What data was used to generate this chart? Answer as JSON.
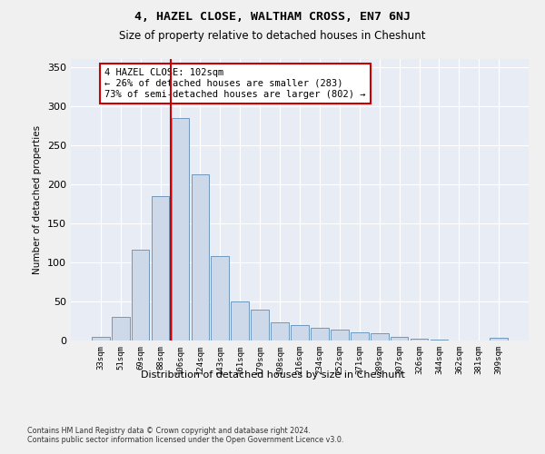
{
  "title": "4, HAZEL CLOSE, WALTHAM CROSS, EN7 6NJ",
  "subtitle": "Size of property relative to detached houses in Cheshunt",
  "xlabel": "Distribution of detached houses by size in Cheshunt",
  "ylabel": "Number of detached properties",
  "bar_color": "#cdd9e8",
  "bar_edge_color": "#7098bc",
  "fig_bg_color": "#f0f0f0",
  "plot_bg_color": "#e8edf5",
  "vline_color": "#cc0000",
  "annotation_text": "4 HAZEL CLOSE: 102sqm\n← 26% of detached houses are smaller (283)\n73% of semi-detached houses are larger (802) →",
  "annotation_box_color": "#ffffff",
  "annotation_box_edge": "#cc0000",
  "footer": "Contains HM Land Registry data © Crown copyright and database right 2024.\nContains public sector information licensed under the Open Government Licence v3.0.",
  "categories": [
    "33sqm",
    "51sqm",
    "69sqm",
    "88sqm",
    "106sqm",
    "124sqm",
    "143sqm",
    "161sqm",
    "179sqm",
    "198sqm",
    "216sqm",
    "234sqm",
    "252sqm",
    "271sqm",
    "289sqm",
    "307sqm",
    "326sqm",
    "344sqm",
    "362sqm",
    "381sqm",
    "399sqm"
  ],
  "values": [
    5,
    30,
    116,
    185,
    285,
    213,
    108,
    50,
    40,
    23,
    20,
    16,
    14,
    10,
    9,
    5,
    2,
    1,
    0,
    0,
    3
  ],
  "vline_category": "106sqm",
  "ylim": [
    0,
    360
  ],
  "yticks": [
    0,
    50,
    100,
    150,
    200,
    250,
    300,
    350
  ]
}
